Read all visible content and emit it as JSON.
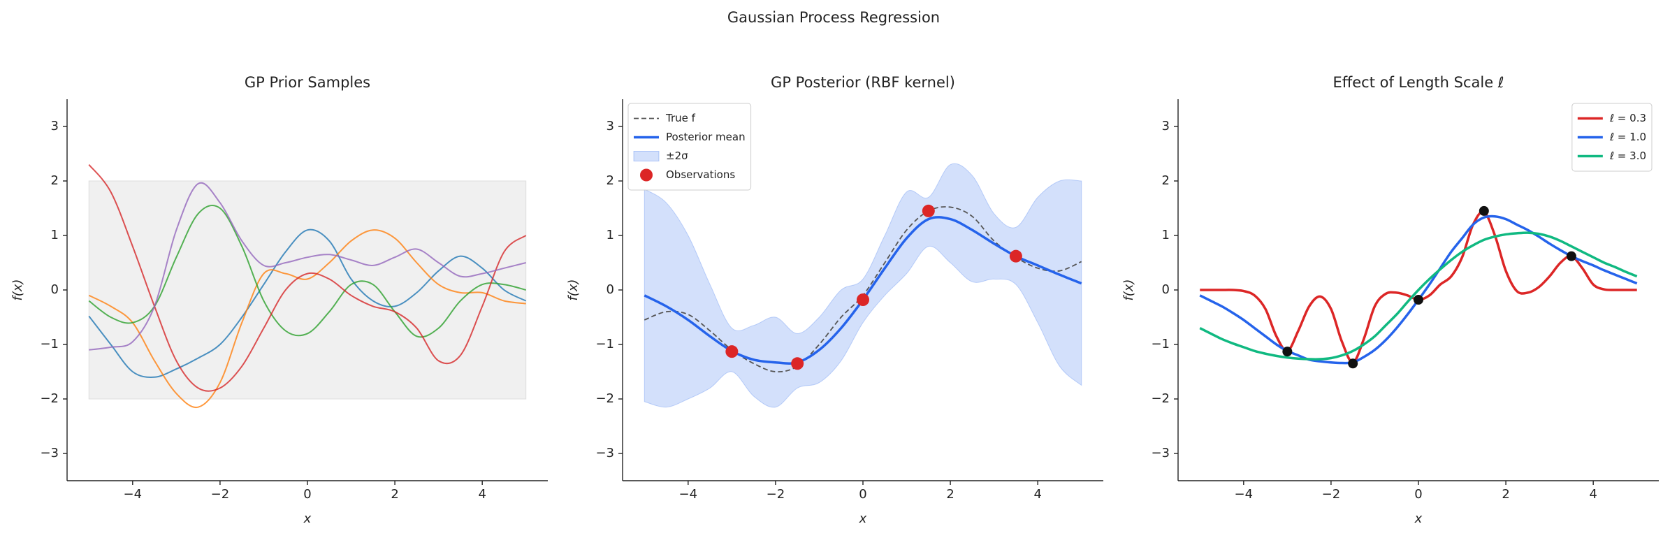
{
  "title": "Gaussian Process Regression",
  "chart_data": [
    {
      "type": "line",
      "title": "GP Prior Samples",
      "xlabel": "x",
      "ylabel": "f(x)",
      "xlim": [
        -5.5,
        5.5
      ],
      "ylim": [
        -3.5,
        3.5
      ],
      "xticks": [
        {
          "value": -4,
          "label": "−4"
        },
        {
          "value": -2,
          "label": "−2"
        },
        0,
        2,
        4
      ],
      "yticks": [
        {
          "value": -3,
          "label": "−3"
        },
        {
          "value": -2,
          "label": "−2"
        },
        {
          "value": -1,
          "label": "−1"
        },
        0,
        1,
        2,
        3
      ],
      "x": [
        -5,
        -4.5,
        -4,
        -3.5,
        -3,
        -2.5,
        -2,
        -1.5,
        -1,
        -0.5,
        0,
        0.5,
        1,
        1.5,
        2,
        2.5,
        3,
        3.5,
        4,
        4.5,
        5
      ],
      "band": {
        "color": "#f0f0f0",
        "lower": -2,
        "upper": 2
      },
      "alpha": 0.8,
      "series": [
        {
          "color": "#1f77b4",
          "values": [
            -0.48,
            -1.0,
            -1.5,
            -1.6,
            -1.45,
            -1.25,
            -1.0,
            -0.5,
            0.1,
            0.7,
            1.1,
            0.9,
            0.2,
            -0.2,
            -0.3,
            -0.05,
            0.35,
            0.62,
            0.4,
            0.0,
            -0.2
          ]
        },
        {
          "color": "#ff7f0e",
          "values": [
            -0.1,
            -0.3,
            -0.6,
            -1.3,
            -1.9,
            -2.15,
            -1.7,
            -0.6,
            0.3,
            0.3,
            0.2,
            0.5,
            0.9,
            1.1,
            0.95,
            0.5,
            0.1,
            -0.05,
            -0.05,
            -0.2,
            -0.25
          ]
        },
        {
          "color": "#2ca02c",
          "values": [
            -0.2,
            -0.5,
            -0.6,
            -0.3,
            0.6,
            1.4,
            1.5,
            0.8,
            -0.2,
            -0.75,
            -0.8,
            -0.4,
            0.1,
            0.1,
            -0.4,
            -0.85,
            -0.7,
            -0.2,
            0.1,
            0.1,
            0.0
          ]
        },
        {
          "color": "#d62728",
          "values": [
            2.3,
            1.8,
            0.8,
            -0.3,
            -1.3,
            -1.8,
            -1.8,
            -1.4,
            -0.7,
            0.0,
            0.3,
            0.2,
            -0.1,
            -0.3,
            -0.4,
            -0.7,
            -1.3,
            -1.2,
            -0.3,
            0.7,
            1.0
          ]
        },
        {
          "color": "#9467bd",
          "values": [
            -1.1,
            -1.05,
            -0.95,
            -0.3,
            1.1,
            1.95,
            1.6,
            0.9,
            0.45,
            0.5,
            0.6,
            0.65,
            0.55,
            0.45,
            0.6,
            0.75,
            0.5,
            0.25,
            0.3,
            0.4,
            0.5
          ]
        }
      ]
    },
    {
      "type": "line",
      "title": "GP Posterior (RBF kernel)",
      "xlabel": "x",
      "ylabel": "f(x)",
      "xlim": [
        -5.5,
        5.5
      ],
      "ylim": [
        -3.5,
        3.5
      ],
      "xticks": [
        {
          "value": -4,
          "label": "−4"
        },
        {
          "value": -2,
          "label": "−2"
        },
        0,
        2,
        4
      ],
      "yticks": [
        {
          "value": -3,
          "label": "−3"
        },
        {
          "value": -2,
          "label": "−2"
        },
        {
          "value": -1,
          "label": "−1"
        },
        0,
        1,
        2,
        3
      ],
      "legend": "upper left",
      "x": [
        -5,
        -4.5,
        -4,
        -3.5,
        -3,
        -2.5,
        -2,
        -1.5,
        -1,
        -0.5,
        0,
        0.5,
        1,
        1.5,
        2,
        2.5,
        3,
        3.5,
        4,
        4.5,
        5
      ],
      "series": [
        {
          "name": "True f",
          "color": "#555555",
          "linestyle": "dashed",
          "values": [
            -0.55,
            -0.4,
            -0.45,
            -0.75,
            -1.1,
            -1.35,
            -1.5,
            -1.4,
            -1.0,
            -0.5,
            -0.1,
            0.5,
            1.1,
            1.45,
            1.52,
            1.35,
            0.9,
            0.6,
            0.4,
            0.35,
            0.52
          ]
        },
        {
          "name": "Posterior mean",
          "color": "#2563eb",
          "values": [
            -0.1,
            -0.3,
            -0.55,
            -0.85,
            -1.12,
            -1.28,
            -1.33,
            -1.33,
            -1.1,
            -0.7,
            -0.18,
            0.4,
            0.95,
            1.3,
            1.3,
            1.1,
            0.85,
            0.62,
            0.45,
            0.28,
            0.12
          ]
        }
      ],
      "band": {
        "name": "±2σ",
        "color": "#2563eb",
        "upper": [
          1.85,
          1.6,
          1.0,
          0.1,
          -0.7,
          -0.65,
          -0.5,
          -0.8,
          -0.5,
          0.0,
          0.2,
          1.0,
          1.8,
          1.7,
          2.3,
          2.1,
          1.4,
          1.15,
          1.7,
          2.0,
          2.0
        ],
        "lower": [
          -2.05,
          -2.15,
          -2.0,
          -1.8,
          -1.5,
          -1.95,
          -2.15,
          -1.8,
          -1.7,
          -1.3,
          -0.6,
          -0.1,
          0.3,
          0.8,
          0.5,
          0.15,
          0.2,
          0.1,
          -0.6,
          -1.4,
          -1.75
        ]
      },
      "points": {
        "name": "Observations",
        "color": "#dc2626",
        "x": [
          -3,
          -1.5,
          0,
          1.5,
          3.5
        ],
        "y": [
          -1.13,
          -1.35,
          -0.18,
          1.45,
          0.62
        ]
      }
    },
    {
      "type": "line",
      "title": "Effect of Length Scale ℓ",
      "xlabel": "x",
      "ylabel": "f(x)",
      "xlim": [
        -5.5,
        5.5
      ],
      "ylim": [
        -3.5,
        3.5
      ],
      "xticks": [
        {
          "value": -4,
          "label": "−4"
        },
        {
          "value": -2,
          "label": "−2"
        },
        0,
        2,
        4
      ],
      "yticks": [
        {
          "value": -3,
          "label": "−3"
        },
        {
          "value": -2,
          "label": "−2"
        },
        {
          "value": -1,
          "label": "−1"
        },
        0,
        1,
        2,
        3
      ],
      "legend": "upper right",
      "x": [
        -5,
        -4.75,
        -4.5,
        -4.25,
        -4,
        -3.75,
        -3.5,
        -3.25,
        -3,
        -2.75,
        -2.5,
        -2.25,
        -2,
        -1.75,
        -1.5,
        -1.25,
        -1,
        -0.75,
        -0.5,
        -0.25,
        0,
        0.25,
        0.5,
        0.75,
        1,
        1.25,
        1.5,
        1.75,
        2,
        2.25,
        2.5,
        2.75,
        3,
        3.25,
        3.5,
        3.75,
        4,
        4.25,
        4.5,
        4.75,
        5
      ],
      "series": [
        {
          "name": "ℓ = 0.3",
          "color": "#dc2626",
          "values": [
            0,
            0,
            0,
            0,
            -0.02,
            -0.1,
            -0.35,
            -0.85,
            -1.12,
            -0.75,
            -0.3,
            -0.12,
            -0.35,
            -0.95,
            -1.33,
            -0.9,
            -0.3,
            -0.07,
            -0.05,
            -0.1,
            -0.18,
            -0.1,
            0.1,
            0.25,
            0.6,
            1.2,
            1.43,
            1.0,
            0.35,
            -0.02,
            -0.05,
            0.05,
            0.25,
            0.5,
            0.62,
            0.4,
            0.1,
            0.01,
            0,
            0,
            0
          ]
        },
        {
          "name": "ℓ = 1.0",
          "color": "#2563eb",
          "values": [
            -0.1,
            -0.2,
            -0.3,
            -0.42,
            -0.55,
            -0.7,
            -0.85,
            -1.0,
            -1.12,
            -1.2,
            -1.28,
            -1.31,
            -1.33,
            -1.34,
            -1.33,
            -1.23,
            -1.1,
            -0.92,
            -0.7,
            -0.45,
            -0.18,
            0.1,
            0.4,
            0.7,
            0.95,
            1.2,
            1.33,
            1.35,
            1.3,
            1.2,
            1.1,
            0.98,
            0.85,
            0.73,
            0.62,
            0.53,
            0.45,
            0.36,
            0.28,
            0.2,
            0.12
          ]
        },
        {
          "name": "ℓ = 3.0",
          "color": "#10b981",
          "values": [
            -0.7,
            -0.8,
            -0.9,
            -0.98,
            -1.05,
            -1.12,
            -1.17,
            -1.21,
            -1.24,
            -1.26,
            -1.27,
            -1.27,
            -1.25,
            -1.2,
            -1.12,
            -1.0,
            -0.85,
            -0.65,
            -0.45,
            -0.22,
            0.0,
            0.2,
            0.38,
            0.55,
            0.7,
            0.82,
            0.92,
            0.98,
            1.02,
            1.04,
            1.05,
            1.03,
            0.98,
            0.9,
            0.8,
            0.7,
            0.6,
            0.5,
            0.42,
            0.33,
            0.25
          ]
        }
      ],
      "points": {
        "color": "#111111",
        "x": [
          -3,
          -1.5,
          0,
          1.5,
          3.5
        ],
        "y": [
          -1.13,
          -1.35,
          -0.18,
          1.45,
          0.62
        ]
      }
    }
  ]
}
